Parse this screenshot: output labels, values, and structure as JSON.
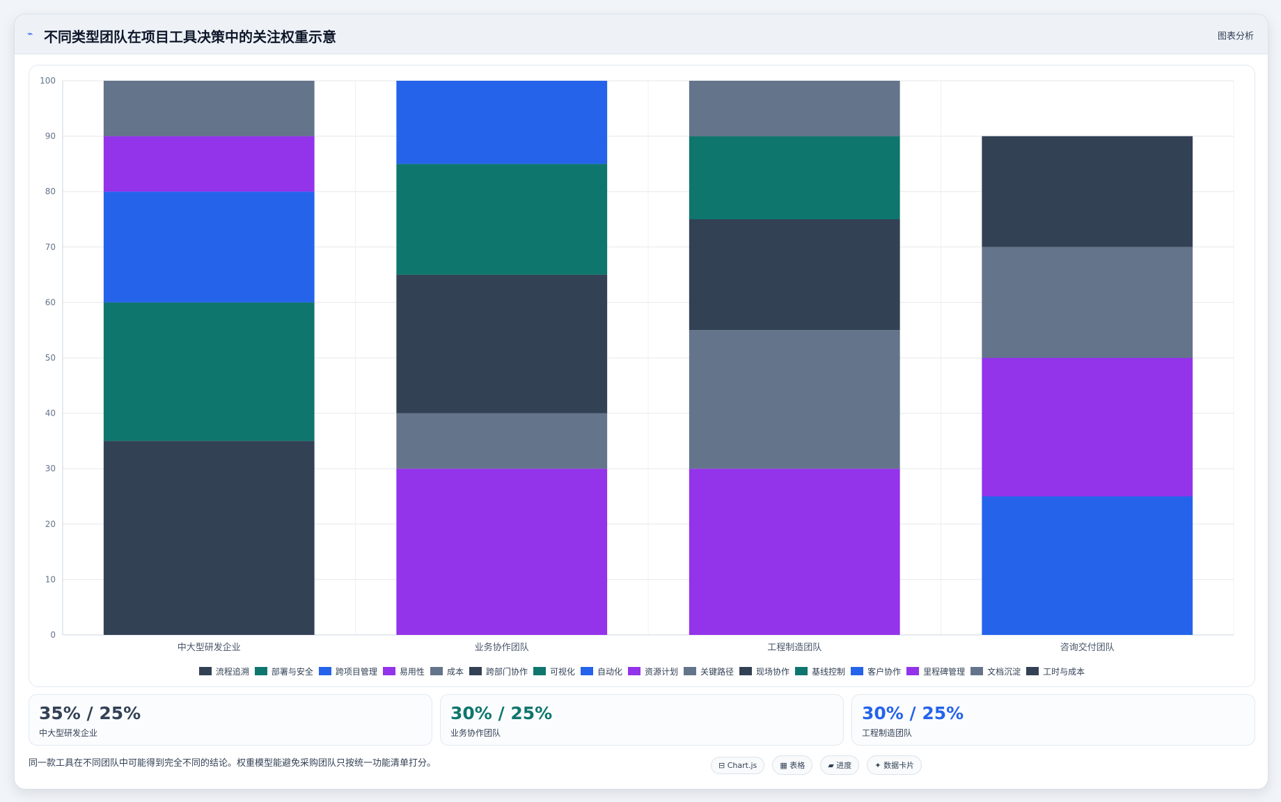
{
  "header": {
    "icon": "chart-line-icon",
    "title": "不同类型团队在项目工具决策中的关注权重示意",
    "action_label": "图表分析"
  },
  "colors": {
    "slate_dark": "#334155",
    "teal": "#0f766e",
    "blue": "#2563eb",
    "purple": "#9333ea",
    "slate": "#64748b"
  },
  "chart_data": {
    "type": "bar",
    "stacked": true,
    "categories": [
      "中大型研发企业",
      "业务协作团队",
      "工程制造团队",
      "咨询交付团队"
    ],
    "ylim": [
      0,
      100
    ],
    "yticks": [
      0,
      10,
      20,
      30,
      40,
      50,
      60,
      70,
      80,
      90,
      100
    ],
    "grid": true,
    "legend_position": "bottom",
    "series": [
      {
        "name": "流程追溯",
        "color": "#334155",
        "values": [
          35,
          null,
          null,
          null
        ]
      },
      {
        "name": "部署与安全",
        "color": "#0f766e",
        "values": [
          25,
          null,
          null,
          null
        ]
      },
      {
        "name": "跨项目管理",
        "color": "#2563eb",
        "values": [
          20,
          null,
          null,
          null
        ]
      },
      {
        "name": "易用性",
        "color": "#9333ea",
        "values": [
          10,
          30,
          null,
          null
        ]
      },
      {
        "name": "成本",
        "color": "#64748b",
        "values": [
          10,
          10,
          null,
          null
        ]
      },
      {
        "name": "跨部门协作",
        "color": "#334155",
        "values": [
          null,
          25,
          null,
          null
        ]
      },
      {
        "name": "可视化",
        "color": "#0f766e",
        "values": [
          null,
          20,
          null,
          null
        ]
      },
      {
        "name": "自动化",
        "color": "#2563eb",
        "values": [
          null,
          15,
          null,
          null
        ]
      },
      {
        "name": "资源计划",
        "color": "#9333ea",
        "values": [
          null,
          null,
          30,
          null
        ]
      },
      {
        "name": "关键路径",
        "color": "#64748b",
        "values": [
          null,
          null,
          25,
          null
        ]
      },
      {
        "name": "现场协作",
        "color": "#334155",
        "values": [
          null,
          null,
          20,
          null
        ]
      },
      {
        "name": "基线控制",
        "color": "#0f766e",
        "values": [
          null,
          null,
          15,
          null
        ]
      },
      {
        "name": "客户协作",
        "color": "#2563eb",
        "values": [
          null,
          null,
          null,
          25
        ]
      },
      {
        "name": "里程碑管理",
        "color": "#9333ea",
        "values": [
          null,
          null,
          null,
          25
        ]
      },
      {
        "name": "文档沉淀",
        "color": "#64748b",
        "values": [
          null,
          null,
          10,
          20
        ]
      },
      {
        "name": "工时与成本",
        "color": "#334155",
        "values": [
          null,
          null,
          null,
          20
        ]
      }
    ]
  },
  "stats": [
    {
      "value": "35% / 25%",
      "label": "中大型研发企业",
      "color": "#334155"
    },
    {
      "value": "30% / 25%",
      "label": "业务协作团队",
      "color": "#0f766e"
    },
    {
      "value": "30% / 25%",
      "label": "工程制造团队",
      "color": "#2563eb"
    }
  ],
  "footer": {
    "note": "同一款工具在不同团队中可能得到完全不同的结论。权重模型能避免采购团队只按统一功能清单打分。",
    "chips": [
      "⊟ Chart.js",
      "▦ 表格",
      "▰ 进度",
      "✦ 数据卡片"
    ]
  }
}
